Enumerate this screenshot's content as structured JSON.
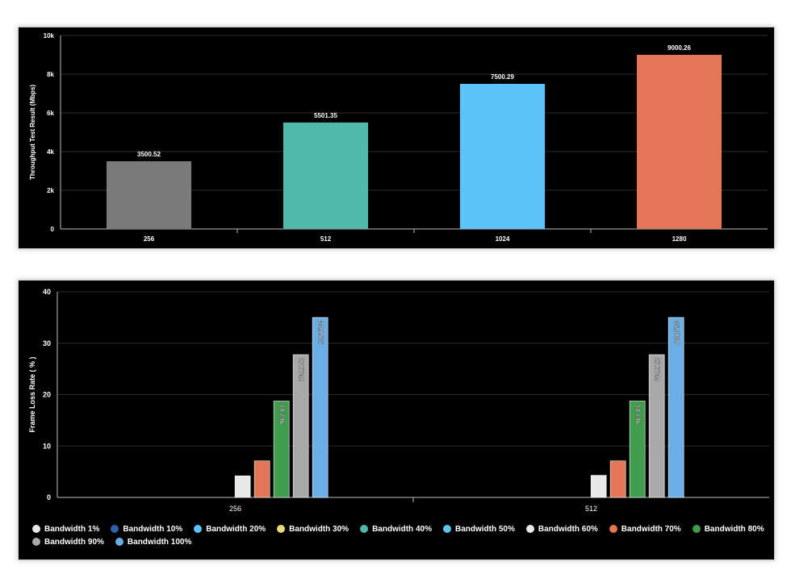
{
  "chart_data": [
    {
      "type": "bar",
      "title": "",
      "xlabel": "",
      "ylabel": "Throughput Test Result (Mbps)",
      "categories": [
        "256",
        "512",
        "1024",
        "1280"
      ],
      "values": [
        3500.52,
        5501.35,
        7500.29,
        9000.26
      ],
      "data_labels": [
        "3500.52",
        "5501.35",
        "7500.29",
        "9000.26"
      ],
      "colors": [
        "#7a7a7a",
        "#52b8aa",
        "#5bc3f5",
        "#e27657"
      ],
      "ylim": [
        0,
        10000
      ],
      "yticks": [
        0,
        2000,
        4000,
        6000,
        8000,
        10000
      ],
      "ytick_labels": [
        "0",
        "2k",
        "4k",
        "6k",
        "8k",
        "10k"
      ],
      "grid": true
    },
    {
      "type": "bar",
      "title": "",
      "xlabel": "",
      "ylabel": "Frame Loss Rate ( % )",
      "categories": [
        "256",
        "512"
      ],
      "ylim": [
        0,
        40
      ],
      "yticks": [
        0,
        10,
        20,
        30,
        40
      ],
      "ytick_labels": [
        "0",
        "10",
        "20",
        "30",
        "40"
      ],
      "grid": true,
      "legend_position": "bottom",
      "series": [
        {
          "name": "Bandwidth 1%",
          "color": "#e8e8e8",
          "values": [
            0,
            0
          ],
          "labels": [
            "",
            ""
          ]
        },
        {
          "name": "Bandwidth 10%",
          "color": "#2e5fa8",
          "values": [
            0,
            0
          ],
          "labels": [
            "",
            ""
          ]
        },
        {
          "name": "Bandwidth 20%",
          "color": "#5bc3f5",
          "values": [
            0,
            0
          ],
          "labels": [
            "",
            ""
          ]
        },
        {
          "name": "Bandwidth 30%",
          "color": "#ecd97a",
          "values": [
            0,
            0
          ],
          "labels": [
            "",
            ""
          ]
        },
        {
          "name": "Bandwidth 40%",
          "color": "#52b8aa",
          "values": [
            0,
            0
          ],
          "labels": [
            "",
            ""
          ]
        },
        {
          "name": "Bandwidth 50%",
          "color": "#5bc3f5",
          "values": [
            0,
            0
          ],
          "labels": [
            "",
            ""
          ]
        },
        {
          "name": "Bandwidth 60%",
          "color": "#e8e8e8",
          "values": [
            4.2,
            4.3
          ],
          "labels": [
            "",
            ""
          ]
        },
        {
          "name": "Bandwidth 70%",
          "color": "#e27657",
          "values": [
            7.1,
            7.1
          ],
          "labels": [
            "",
            ""
          ]
        },
        {
          "name": "Bandwidth 80%",
          "color": "#3f9e4d",
          "values": [
            18.746,
            18.746
          ],
          "labels": [
            "18.746",
            "18.746"
          ]
        },
        {
          "name": "Bandwidth 90%",
          "color": "#a8a8a8",
          "values": [
            27.7742,
            27.7744
          ],
          "labels": [
            "27.7742",
            "27.7744"
          ]
        },
        {
          "name": "Bandwidth 100%",
          "color": "#6aaee8",
          "values": [
            34.9975,
            35.0009
          ],
          "labels": [
            "34.9975",
            "35.0009"
          ]
        }
      ]
    }
  ]
}
